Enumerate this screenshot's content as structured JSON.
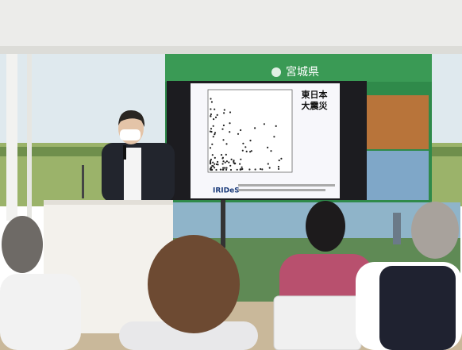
{
  "banner": {
    "title": "宮城県"
  },
  "slide": {
    "title_line1": "東日本",
    "title_line2": "大震災",
    "logo": "IRIDeS"
  }
}
